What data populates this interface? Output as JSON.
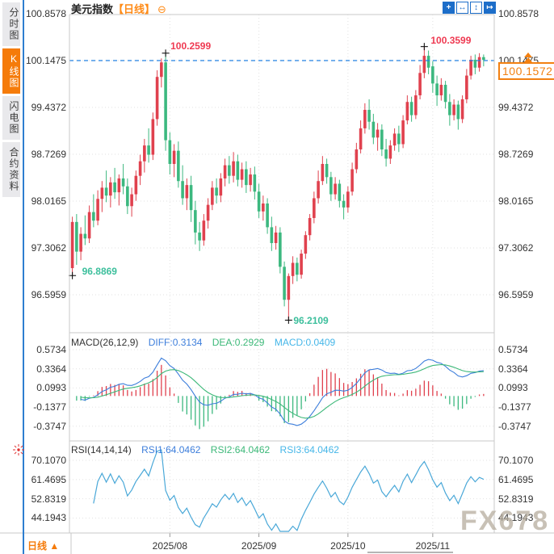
{
  "app": {
    "watermark": "FX678"
  },
  "sidebar": {
    "items": [
      {
        "label": "分时图",
        "active": false
      },
      {
        "label": "K线图",
        "active": true
      },
      {
        "label": "闪电图",
        "active": false
      },
      {
        "label": "合约资料",
        "active": false
      }
    ]
  },
  "header": {
    "title": "美元指数",
    "period_tag": "【日线】",
    "collapse_icon": "⊖"
  },
  "toolbar": {
    "icons": [
      {
        "name": "crosshair-icon",
        "glyph": "+",
        "filled": true
      },
      {
        "name": "horizontal-range-icon",
        "glyph": "↔",
        "filled": false
      },
      {
        "name": "vertical-range-icon",
        "glyph": "↕",
        "filled": false
      },
      {
        "name": "pan-right-icon",
        "glyph": "↦",
        "filled": true
      }
    ]
  },
  "main_chart": {
    "y_tick_labels": [
      "100.8578",
      "100.1475",
      "99.4372",
      "98.7269",
      "98.0165",
      "97.3062",
      "96.5959"
    ],
    "current_price": "100.1572"
  },
  "macd_panel": {
    "title": "MACD(26,12,9)",
    "diff_label": "DIFF:0.3134",
    "dea_label": "DEA:0.2929",
    "macd_label": "MACD:0.0409",
    "y_tick_labels": [
      "0.5734",
      "0.3364",
      "0.0993",
      "-0.1377",
      "-0.3747"
    ]
  },
  "rsi_panel": {
    "title": "RSI(14,14,14)",
    "rsi1_label": "RSI1:64.0462",
    "rsi2_label": "RSI2:64.0462",
    "rsi3_label": "RSI3:64.0462",
    "y_tick_labels": [
      "70.1070",
      "61.4695",
      "52.8319",
      "44.1943"
    ]
  },
  "x_axis": {
    "labels": [
      "2025/08",
      "2025/09",
      "2025/10",
      "2025/11"
    ],
    "period_button": "日线 ▲"
  },
  "colors": {
    "up": "#e0414e",
    "down": "#3cb87f",
    "high_label": "#ef3a52",
    "low_label": "#3cbf9c",
    "ref_blue": "#2281e2",
    "accent_orange": "#f28011",
    "diff_blue": "#3d7edb",
    "dea_green": "#3cb878",
    "macd_cyan": "#45b6e8",
    "rsi_cyan": "#4aa8d8",
    "grid": "#e2e2e2",
    "border": "#c9c9c9",
    "cross": "#111111"
  },
  "chart_data": {
    "type": "candlestick",
    "title": "美元指数【日线】",
    "period": "日线",
    "x_axis": {
      "tick_labels": [
        "2025/08",
        "2025/09",
        "2025/10",
        "2025/11"
      ],
      "tick_candle_indices": [
        23,
        44,
        65,
        85
      ]
    },
    "y_axis": {
      "tick_values": [
        100.8578,
        100.1475,
        99.4372,
        98.7269,
        98.0165,
        97.3062,
        96.5959
      ]
    },
    "reference_line": 100.1475,
    "current_price": 100.1572,
    "markers": [
      {
        "type": "high",
        "text": "100.2599",
        "value": 100.2599,
        "candle_index": 22
      },
      {
        "type": "low",
        "text": "96.8869",
        "value": 96.8869,
        "candle_index": 0
      },
      {
        "type": "low",
        "text": "96.2109",
        "value": 96.2109,
        "candle_index": 51
      },
      {
        "type": "high",
        "text": "100.3599",
        "value": 100.3599,
        "candle_index": 83
      }
    ],
    "indicators": {
      "macd": {
        "params": [
          26,
          12,
          9
        ],
        "diff": 0.3134,
        "dea": 0.2929,
        "macd": 0.0409,
        "y_ticks": [
          0.5734,
          0.3364,
          0.0993,
          -0.1377,
          -0.3747
        ]
      },
      "rsi": {
        "params": [
          14,
          14,
          14
        ],
        "rsi1": 64.0462,
        "rsi2": 64.0462,
        "rsi3": 64.0462,
        "y_ticks": [
          70.107,
          61.4695,
          52.8319,
          44.1943
        ]
      }
    },
    "ohlc": [
      [
        97.0,
        97.78,
        96.8869,
        97.7
      ],
      [
        97.7,
        97.82,
        97.05,
        97.25
      ],
      [
        97.25,
        97.62,
        97.12,
        97.52
      ],
      [
        97.52,
        97.8,
        97.35,
        97.45
      ],
      [
        97.45,
        97.95,
        97.38,
        97.85
      ],
      [
        97.85,
        98.12,
        97.62,
        97.72
      ],
      [
        97.72,
        98.18,
        97.65,
        98.05
      ],
      [
        98.05,
        98.32,
        97.85,
        98.22
      ],
      [
        98.22,
        98.48,
        98.0,
        98.1
      ],
      [
        98.1,
        98.38,
        97.92,
        98.3
      ],
      [
        98.3,
        98.52,
        98.05,
        98.15
      ],
      [
        98.15,
        98.42,
        97.95,
        98.36
      ],
      [
        98.36,
        98.58,
        98.12,
        98.24
      ],
      [
        98.24,
        98.36,
        97.82,
        97.94
      ],
      [
        97.94,
        98.22,
        97.78,
        98.12
      ],
      [
        98.12,
        98.48,
        98.02,
        98.4
      ],
      [
        98.4,
        98.72,
        98.26,
        98.62
      ],
      [
        98.62,
        98.96,
        98.45,
        98.86
      ],
      [
        98.86,
        99.12,
        98.6,
        98.72
      ],
      [
        98.72,
        99.36,
        98.64,
        99.26
      ],
      [
        99.26,
        100.0,
        99.16,
        99.9
      ],
      [
        99.9,
        100.18,
        99.74,
        100.12
      ],
      [
        100.12,
        100.2599,
        98.78,
        98.94
      ],
      [
        98.94,
        99.06,
        98.42,
        98.58
      ],
      [
        98.58,
        98.88,
        98.38,
        98.78
      ],
      [
        98.78,
        98.92,
        98.22,
        98.32
      ],
      [
        98.32,
        98.56,
        97.96,
        98.06
      ],
      [
        98.06,
        98.36,
        97.88,
        98.26
      ],
      [
        98.26,
        98.4,
        97.7,
        97.88
      ],
      [
        97.88,
        98.02,
        97.36,
        97.54
      ],
      [
        97.54,
        97.7,
        97.26,
        97.42
      ],
      [
        97.42,
        97.82,
        97.34,
        97.72
      ],
      [
        97.72,
        98.06,
        97.6,
        97.96
      ],
      [
        97.96,
        98.32,
        97.88,
        98.22
      ],
      [
        98.22,
        98.36,
        97.98,
        98.1
      ],
      [
        98.1,
        98.44,
        98.0,
        98.36
      ],
      [
        98.36,
        98.66,
        98.24,
        98.56
      ],
      [
        98.56,
        98.7,
        98.28,
        98.4
      ],
      [
        98.4,
        98.76,
        98.3,
        98.62
      ],
      [
        98.62,
        98.72,
        98.24,
        98.34
      ],
      [
        98.34,
        98.6,
        98.22,
        98.5
      ],
      [
        98.5,
        98.62,
        98.14,
        98.26
      ],
      [
        98.26,
        98.52,
        98.16,
        98.42
      ],
      [
        98.42,
        98.54,
        98.04,
        98.16
      ],
      [
        98.16,
        98.28,
        97.76,
        97.86
      ],
      [
        97.86,
        98.1,
        97.72,
        97.98
      ],
      [
        97.98,
        98.06,
        97.52,
        97.62
      ],
      [
        97.62,
        97.78,
        97.26,
        97.38
      ],
      [
        97.38,
        97.64,
        97.28,
        97.54
      ],
      [
        97.54,
        97.62,
        96.92,
        97.02
      ],
      [
        97.02,
        97.1,
        96.42,
        96.52
      ],
      [
        96.52,
        96.92,
        96.2109,
        96.88
      ],
      [
        96.88,
        97.18,
        96.76,
        97.08
      ],
      [
        97.08,
        97.16,
        96.8,
        96.9
      ],
      [
        96.9,
        97.28,
        96.84,
        97.22
      ],
      [
        97.22,
        97.56,
        97.14,
        97.5
      ],
      [
        97.5,
        97.82,
        97.42,
        97.76
      ],
      [
        97.76,
        98.16,
        97.68,
        98.06
      ],
      [
        98.06,
        98.48,
        97.98,
        98.32
      ],
      [
        98.32,
        98.7,
        98.26,
        98.58
      ],
      [
        98.58,
        98.66,
        98.28,
        98.38
      ],
      [
        98.38,
        98.46,
        98.02,
        98.12
      ],
      [
        98.12,
        98.38,
        98.04,
        98.28
      ],
      [
        98.28,
        98.34,
        97.92,
        98.02
      ],
      [
        98.02,
        98.12,
        97.74,
        97.92
      ],
      [
        97.92,
        98.24,
        97.84,
        98.16
      ],
      [
        98.16,
        98.6,
        98.1,
        98.5
      ],
      [
        98.5,
        98.9,
        98.44,
        98.8
      ],
      [
        98.8,
        99.24,
        98.74,
        99.12
      ],
      [
        99.12,
        99.5,
        99.04,
        99.4
      ],
      [
        99.4,
        99.56,
        99.1,
        99.22
      ],
      [
        99.22,
        99.34,
        98.88,
        98.98
      ],
      [
        98.98,
        99.2,
        98.78,
        99.1
      ],
      [
        99.1,
        99.18,
        98.7,
        98.8
      ],
      [
        98.8,
        98.96,
        98.54,
        98.66
      ],
      [
        98.66,
        98.94,
        98.58,
        98.86
      ],
      [
        98.86,
        99.12,
        98.78,
        99.04
      ],
      [
        99.04,
        99.16,
        98.76,
        98.88
      ],
      [
        98.88,
        99.32,
        98.82,
        99.24
      ],
      [
        99.24,
        99.62,
        99.18,
        99.52
      ],
      [
        99.52,
        99.6,
        99.22,
        99.32
      ],
      [
        99.32,
        99.7,
        99.26,
        99.62
      ],
      [
        99.62,
        100.08,
        99.56,
        99.96
      ],
      [
        99.96,
        100.3599,
        99.88,
        100.22
      ],
      [
        100.22,
        100.3,
        99.94,
        100.04
      ],
      [
        100.06,
        100.14,
        99.66,
        99.8
      ],
      [
        99.8,
        99.92,
        99.46,
        99.62
      ],
      [
        99.62,
        99.88,
        99.54,
        99.78
      ],
      [
        99.78,
        99.84,
        99.42,
        99.52
      ],
      [
        99.52,
        99.64,
        99.16,
        99.32
      ],
      [
        99.32,
        99.56,
        99.24,
        99.48
      ],
      [
        99.48,
        99.54,
        99.1,
        99.26
      ],
      [
        99.26,
        99.62,
        99.2,
        99.56
      ],
      [
        99.56,
        100.02,
        99.5,
        99.92
      ],
      [
        99.92,
        100.22,
        99.86,
        100.16
      ],
      [
        100.16,
        100.24,
        99.94,
        100.04
      ],
      [
        100.04,
        100.26,
        99.98,
        100.2
      ],
      [
        100.2,
        100.24,
        100.06,
        100.1572
      ]
    ]
  }
}
